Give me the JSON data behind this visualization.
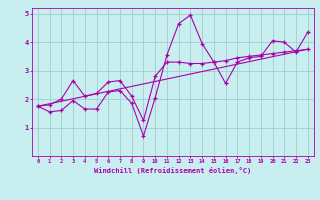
{
  "title": "",
  "xlabel": "Windchill (Refroidissement éolien,°C)",
  "ylabel": "",
  "xlim": [
    -0.5,
    23.5
  ],
  "ylim": [
    0,
    5.2
  ],
  "xticks": [
    0,
    1,
    2,
    3,
    4,
    5,
    6,
    7,
    8,
    9,
    10,
    11,
    12,
    13,
    14,
    15,
    16,
    17,
    18,
    19,
    20,
    21,
    22,
    23
  ],
  "yticks": [
    1,
    2,
    3,
    4,
    5
  ],
  "bg_color": "#c8eef0",
  "line_color": "#aa00aa",
  "grid_color": "#9ecece",
  "line1_x": [
    0,
    1,
    2,
    3,
    4,
    5,
    6,
    7,
    8,
    9,
    10,
    11,
    12,
    13,
    14,
    15,
    16,
    17,
    18,
    19,
    20,
    21,
    22,
    23
  ],
  "line1_y": [
    1.75,
    1.55,
    1.6,
    1.95,
    1.65,
    1.65,
    2.25,
    2.3,
    1.85,
    0.7,
    2.05,
    3.55,
    4.65,
    4.95,
    3.95,
    3.3,
    2.55,
    3.3,
    3.45,
    3.5,
    4.05,
    4.0,
    3.65,
    4.35
  ],
  "line2_x": [
    0,
    1,
    2,
    3,
    4,
    5,
    6,
    7,
    8,
    9,
    10,
    11,
    12,
    13,
    14,
    15,
    16,
    17,
    18,
    19,
    20,
    21,
    22,
    23
  ],
  "line2_y": [
    1.75,
    1.8,
    2.0,
    2.65,
    2.1,
    2.2,
    2.6,
    2.65,
    2.1,
    1.25,
    2.8,
    3.3,
    3.3,
    3.25,
    3.25,
    3.3,
    3.35,
    3.45,
    3.5,
    3.55,
    3.6,
    3.65,
    3.7,
    3.75
  ],
  "line3_x": [
    0,
    23
  ],
  "line3_y": [
    1.75,
    3.75
  ]
}
